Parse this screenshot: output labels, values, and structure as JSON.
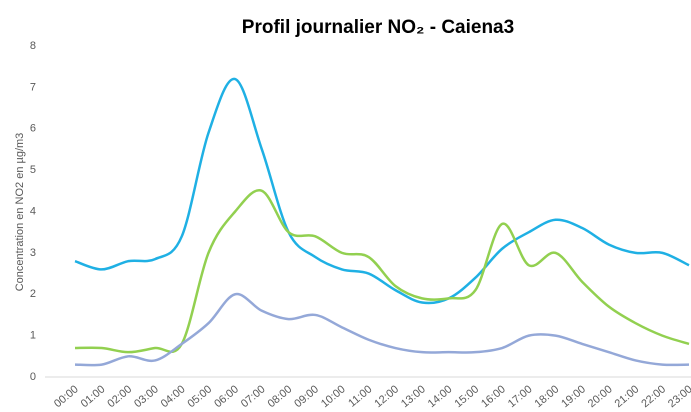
{
  "chart_data": {
    "type": "line",
    "title": "Profil journalier NO₂ - Caiena3",
    "y_label": "Concentration en NO2 en µg/m3",
    "categories": [
      "00:00",
      "01:00",
      "02:00",
      "03:00",
      "04:00",
      "05:00",
      "06:00",
      "07:00",
      "08:00",
      "09:00",
      "10:00",
      "11:00",
      "12:00",
      "13:00",
      "14:00",
      "15:00",
      "16:00",
      "17:00",
      "18:00",
      "19:00",
      "20:00",
      "21:00",
      "22:00",
      "23:00"
    ],
    "series": [
      {
        "color": "#1fb0e4",
        "values": [
          2.8,
          2.6,
          2.8,
          2.85,
          3.4,
          5.9,
          7.2,
          5.5,
          3.5,
          2.9,
          2.6,
          2.5,
          2.1,
          1.8,
          1.9,
          2.4,
          3.1,
          3.5,
          3.8,
          3.6,
          3.2,
          3.0,
          3.0,
          2.7
        ]
      },
      {
        "color": "#92d050",
        "values": [
          0.7,
          0.7,
          0.6,
          0.7,
          0.8,
          3.0,
          4.0,
          4.5,
          3.5,
          3.4,
          3.0,
          2.9,
          2.2,
          1.9,
          1.9,
          2.1,
          3.7,
          2.7,
          3.0,
          2.3,
          1.7,
          1.3,
          1.0,
          0.8
        ]
      },
      {
        "color": "#94a8d8",
        "values": [
          0.3,
          0.3,
          0.5,
          0.4,
          0.8,
          1.3,
          2.0,
          1.6,
          1.4,
          1.5,
          1.2,
          0.9,
          0.7,
          0.6,
          0.6,
          0.6,
          0.7,
          1.0,
          1.0,
          0.8,
          0.6,
          0.4,
          0.3,
          0.3
        ]
      }
    ],
    "ylim": [
      0,
      8
    ],
    "yticks": [
      0,
      1,
      2,
      3,
      4,
      5,
      6,
      7,
      8
    ],
    "grid": false
  }
}
